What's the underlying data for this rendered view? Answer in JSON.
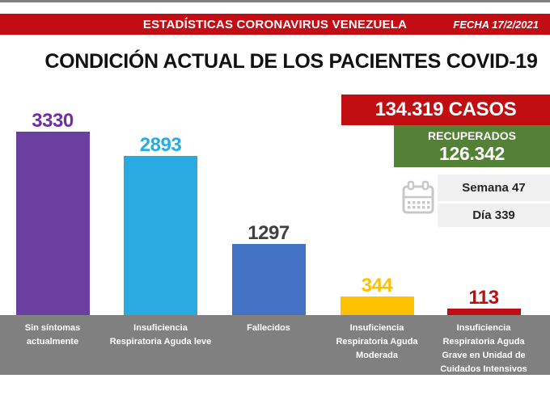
{
  "banner": {
    "title": "ESTADÍSTICAS CORONAVIRUS VENEZUELA",
    "date_label": "FECHA 17/2/2021",
    "bg_color": "#C20D14"
  },
  "page_title": "CONDICIÓN ACTUAL DE LOS PACIENTES COVID-19",
  "chart_data": {
    "type": "bar",
    "title": "CONDICIÓN ACTUAL DE LOS PACIENTES COVID-19",
    "categories": [
      "Sin síntomas actualmente",
      "Insuficiencia Respiratoria Aguda leve",
      "Fallecidos",
      "Insuficiencia Respiratoria Aguda Moderada",
      "Insuficiencia Respiratoria Aguda Grave en Unidad de Cuidados Intensivos"
    ],
    "category_lines": [
      [
        "Sin síntomas",
        "actualmente"
      ],
      [
        "Insuficiencia",
        "Respiratoria Aguda leve"
      ],
      [
        "Fallecidos"
      ],
      [
        "Insuficiencia",
        "Respiratoria Aguda",
        "Moderada"
      ],
      [
        "Insuficiencia",
        "Respiratoria Aguda",
        "Grave en Unidad de",
        "Cuidados Intensivos"
      ]
    ],
    "values": [
      3330,
      2893,
      1297,
      344,
      113
    ],
    "bar_colors": [
      "#6B3FA0",
      "#29ABE2",
      "#4472C4",
      "#FFC000",
      "#C00D12"
    ],
    "value_label_colors": [
      "#7030A0",
      "#29ABE2",
      "#404040",
      "#FFC000",
      "#C00D12"
    ],
    "xlabel": "",
    "ylabel": "",
    "ylim": [
      0,
      3330
    ],
    "grid": false,
    "legend": false,
    "axis_strip_color": "#808080"
  },
  "stats": {
    "cases_label": "134.319 CASOS",
    "cases_bg": "#C20D12",
    "recovered_title": "RECUPERADOS",
    "recovered_value": "126.342",
    "recovered_bg": "#538135",
    "week_label": "Semana 47",
    "day_label": "Día 339",
    "calendar_icon": "calendar"
  }
}
